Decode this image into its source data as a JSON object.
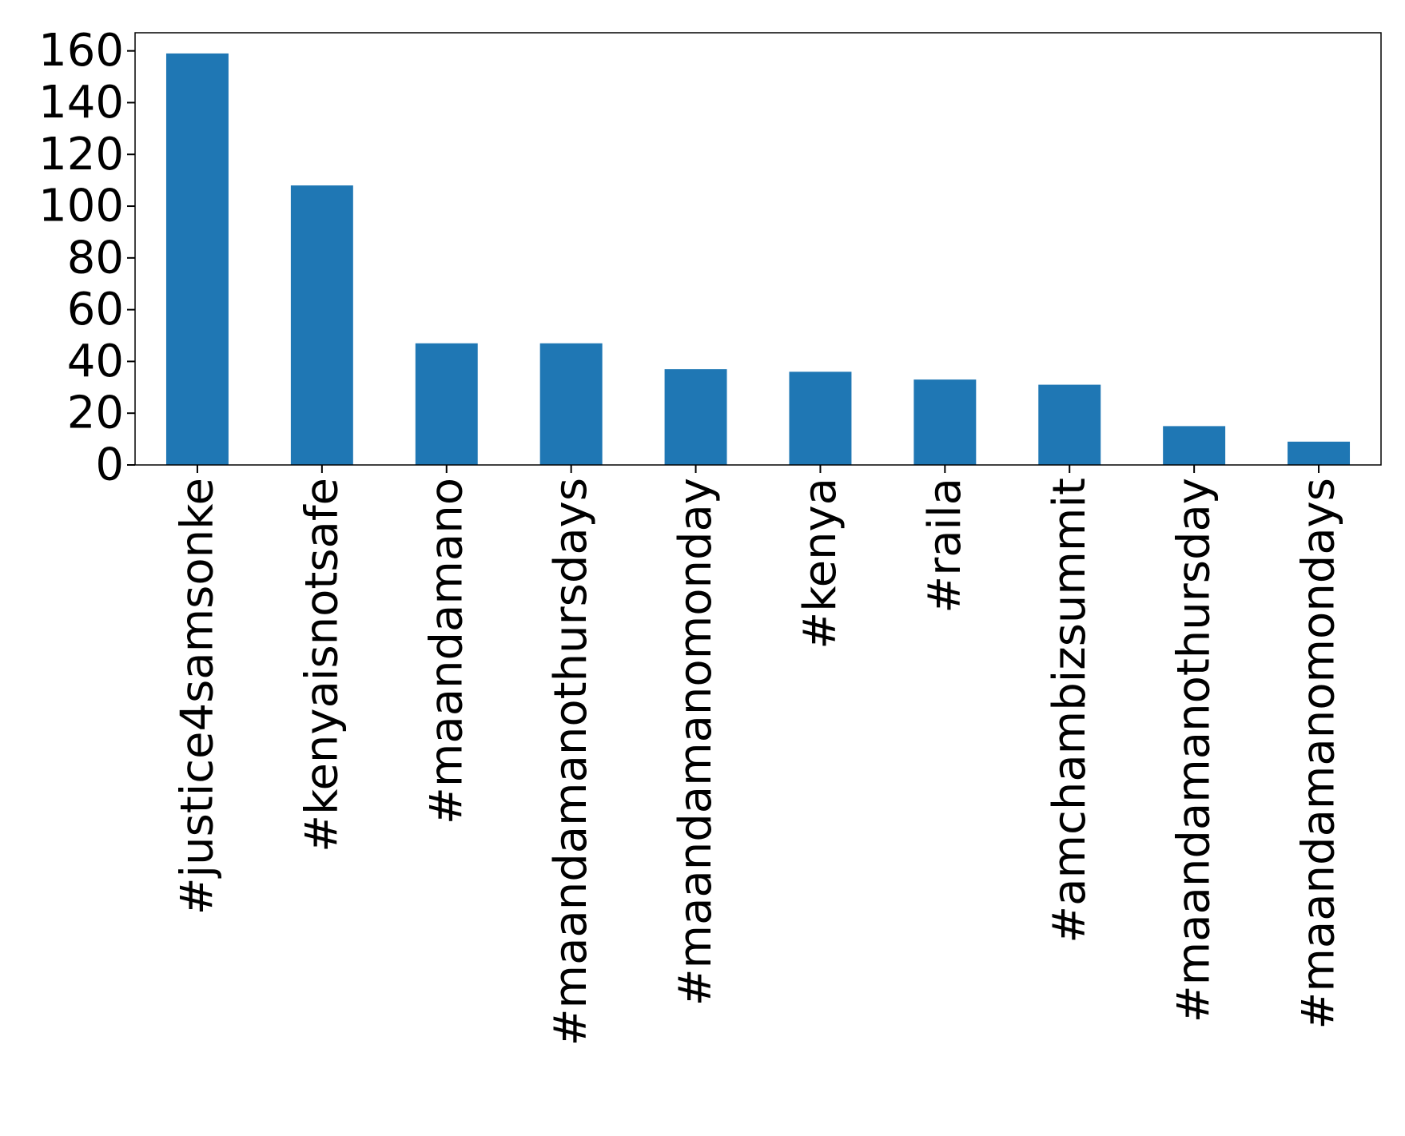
{
  "chart_data": {
    "type": "bar",
    "categories": [
      "#justice4samsonke",
      "#kenyaisnotsafe",
      "#maandamano",
      "#maandamanothursdays",
      "#maandamanomonday",
      "#kenya",
      "#raila",
      "#amchambizsummit",
      "#maandamanothursday",
      "#maandamanomondays"
    ],
    "values": [
      159,
      108,
      47,
      47,
      37,
      36,
      33,
      31,
      15,
      9
    ],
    "color": "#1f77b4",
    "ylim": [
      0,
      167
    ],
    "yticks": [
      0,
      20,
      40,
      60,
      80,
      100,
      120,
      140,
      160
    ],
    "grid": false
  }
}
